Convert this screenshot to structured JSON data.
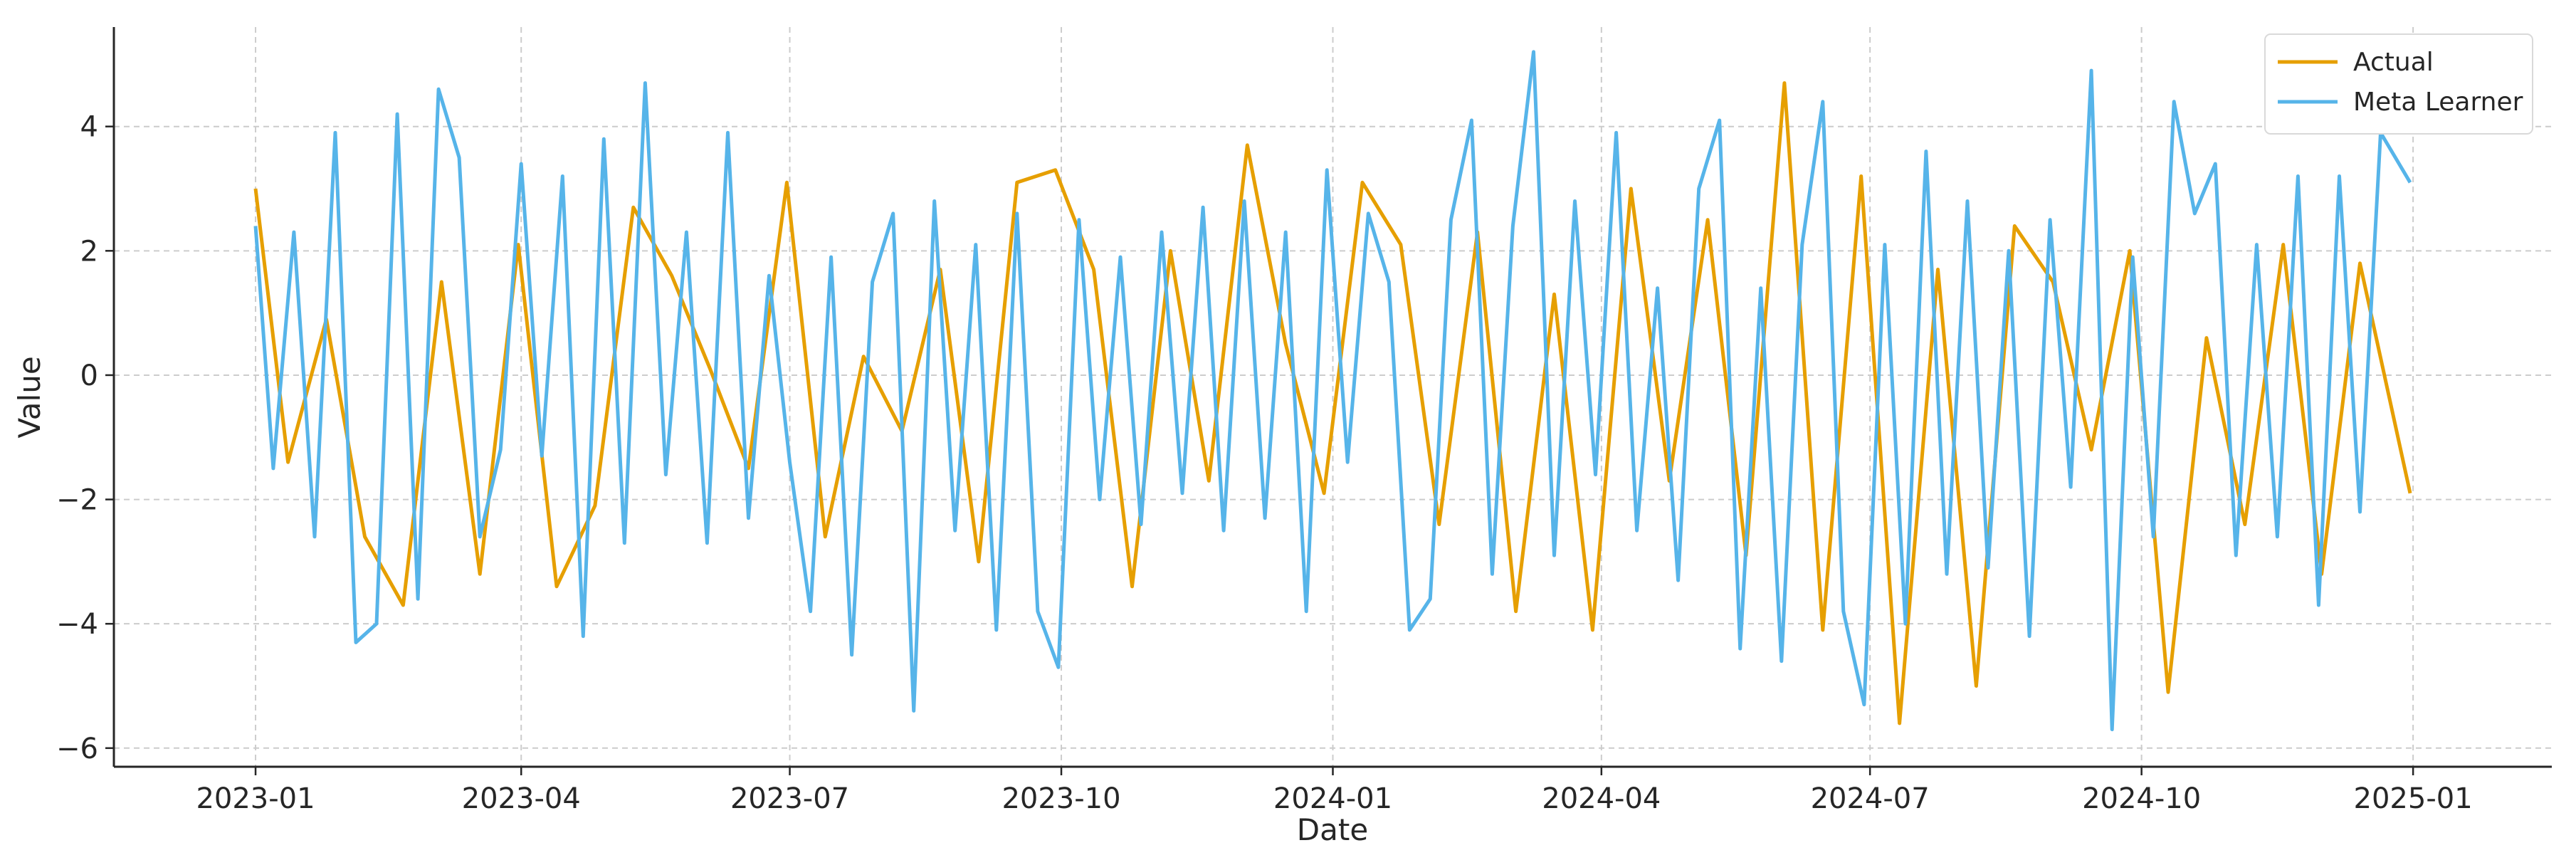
{
  "chart_data": {
    "type": "line",
    "title": "",
    "xlabel": "Date",
    "ylabel": "Value",
    "x_range": [
      "2023-01-01",
      "2024-12-31"
    ],
    "xlim": [
      "2022-11-14",
      "2025-02-17"
    ],
    "ylim": [
      -6.3,
      5.6
    ],
    "grid": true,
    "legend_position": "top-right",
    "x_ticks": [
      "2023-01",
      "2023-04",
      "2023-07",
      "2023-10",
      "2024-01",
      "2024-04",
      "2024-07",
      "2024-10",
      "2025-01"
    ],
    "x_tick_dates": [
      "2023-01-01",
      "2023-04-01",
      "2023-07-01",
      "2023-10-01",
      "2024-01-01",
      "2024-04-01",
      "2024-07-01",
      "2024-10-01",
      "2025-01-01"
    ],
    "y_ticks": [
      -6,
      -4,
      -2,
      0,
      2,
      4
    ],
    "y_tick_labels": [
      "−6",
      "−4",
      "−2",
      "0",
      "2",
      "4"
    ],
    "series": [
      {
        "name": "Actual",
        "color": "#E69F00",
        "x": [
          "2023-01-01",
          "2023-01-12",
          "2023-01-25",
          "2023-02-07",
          "2023-02-20",
          "2023-03-05",
          "2023-03-18",
          "2023-03-31",
          "2023-04-13",
          "2023-04-26",
          "2023-05-09",
          "2023-05-22",
          "2023-06-04",
          "2023-06-17",
          "2023-06-30",
          "2023-07-13",
          "2023-07-26",
          "2023-08-08",
          "2023-08-21",
          "2023-09-03",
          "2023-09-16",
          "2023-09-29",
          "2023-10-12",
          "2023-10-25",
          "2023-11-07",
          "2023-11-20",
          "2023-12-03",
          "2023-12-16",
          "2023-12-29",
          "2024-01-11",
          "2024-01-24",
          "2024-02-06",
          "2024-02-19",
          "2024-03-03",
          "2024-03-16",
          "2024-03-29",
          "2024-04-11",
          "2024-04-24",
          "2024-05-07",
          "2024-05-20",
          "2024-06-02",
          "2024-06-15",
          "2024-06-28",
          "2024-07-11",
          "2024-07-24",
          "2024-08-06",
          "2024-08-19",
          "2024-09-01",
          "2024-09-14",
          "2024-09-27",
          "2024-10-10",
          "2024-10-23",
          "2024-11-05",
          "2024-11-18",
          "2024-12-01",
          "2024-12-14",
          "2024-12-31"
        ],
        "y": [
          3.0,
          -1.4,
          0.9,
          -2.6,
          -3.7,
          1.5,
          -3.2,
          2.1,
          -3.4,
          -2.1,
          2.7,
          1.6,
          0.1,
          -1.5,
          3.1,
          -2.6,
          0.3,
          -0.9,
          1.7,
          -3.0,
          3.1,
          3.3,
          1.7,
          -3.4,
          2.0,
          -1.7,
          3.7,
          0.5,
          -1.9,
          3.1,
          2.1,
          -2.4,
          2.3,
          -3.8,
          1.3,
          -4.1,
          3.0,
          -1.7,
          2.5,
          -2.9,
          4.7,
          -4.1,
          3.2,
          -5.6,
          1.7,
          -5.0,
          2.4,
          1.5,
          -1.2,
          2.0,
          -5.1,
          0.6,
          -2.4,
          2.1,
          -3.2,
          1.8,
          -1.9
        ]
      },
      {
        "name": "Meta Learner",
        "color": "#56B4E9",
        "x": [
          "2023-01-01",
          "2023-01-07",
          "2023-01-14",
          "2023-01-21",
          "2023-01-28",
          "2023-02-04",
          "2023-02-11",
          "2023-02-18",
          "2023-02-25",
          "2023-03-04",
          "2023-03-11",
          "2023-03-18",
          "2023-03-25",
          "2023-04-01",
          "2023-04-08",
          "2023-04-15",
          "2023-04-22",
          "2023-04-29",
          "2023-05-06",
          "2023-05-13",
          "2023-05-20",
          "2023-05-27",
          "2023-06-03",
          "2023-06-10",
          "2023-06-17",
          "2023-06-24",
          "2023-07-01",
          "2023-07-08",
          "2023-07-15",
          "2023-07-22",
          "2023-07-29",
          "2023-08-05",
          "2023-08-12",
          "2023-08-19",
          "2023-08-26",
          "2023-09-02",
          "2023-09-09",
          "2023-09-16",
          "2023-09-23",
          "2023-09-30",
          "2023-10-07",
          "2023-10-14",
          "2023-10-21",
          "2023-10-28",
          "2023-11-04",
          "2023-11-11",
          "2023-11-18",
          "2023-11-25",
          "2023-12-02",
          "2023-12-09",
          "2023-12-16",
          "2023-12-23",
          "2023-12-30",
          "2024-01-06",
          "2024-01-13",
          "2024-01-20",
          "2024-01-27",
          "2024-02-03",
          "2024-02-10",
          "2024-02-17",
          "2024-02-24",
          "2024-03-02",
          "2024-03-09",
          "2024-03-16",
          "2024-03-23",
          "2024-03-30",
          "2024-04-06",
          "2024-04-13",
          "2024-04-20",
          "2024-04-27",
          "2024-05-04",
          "2024-05-11",
          "2024-05-18",
          "2024-05-25",
          "2024-06-01",
          "2024-06-08",
          "2024-06-15",
          "2024-06-22",
          "2024-06-29",
          "2024-07-06",
          "2024-07-13",
          "2024-07-20",
          "2024-07-27",
          "2024-08-03",
          "2024-08-10",
          "2024-08-17",
          "2024-08-24",
          "2024-08-31",
          "2024-09-07",
          "2024-09-14",
          "2024-09-21",
          "2024-09-28",
          "2024-10-05",
          "2024-10-12",
          "2024-10-19",
          "2024-10-26",
          "2024-11-02",
          "2024-11-09",
          "2024-11-16",
          "2024-11-23",
          "2024-11-30",
          "2024-12-07",
          "2024-12-14",
          "2024-12-21",
          "2024-12-31"
        ],
        "y": [
          2.4,
          -1.5,
          2.3,
          -2.6,
          3.9,
          -4.3,
          -4.0,
          4.2,
          -3.6,
          4.6,
          3.5,
          -2.6,
          -1.2,
          3.4,
          -1.3,
          3.2,
          -4.2,
          3.8,
          -2.7,
          4.7,
          -1.6,
          2.3,
          -2.7,
          3.9,
          -2.3,
          1.6,
          -1.4,
          -3.8,
          1.9,
          -4.5,
          1.5,
          2.6,
          -5.4,
          2.8,
          -2.5,
          2.1,
          -4.1,
          2.6,
          -3.8,
          -4.7,
          2.5,
          -2.0,
          1.9,
          -2.4,
          2.3,
          -1.9,
          2.7,
          -2.5,
          2.8,
          -2.3,
          2.3,
          -3.8,
          3.3,
          -1.4,
          2.6,
          1.5,
          -4.1,
          -3.6,
          2.5,
          4.1,
          -3.2,
          2.4,
          5.2,
          -2.9,
          2.8,
          -1.6,
          3.9,
          -2.5,
          1.4,
          -3.3,
          3.0,
          4.1,
          -4.4,
          1.4,
          -4.6,
          2.1,
          4.4,
          -3.8,
          -5.3,
          2.1,
          -4.0,
          3.6,
          -3.2,
          2.8,
          -3.1,
          2.0,
          -4.2,
          2.5,
          -1.8,
          4.9,
          -5.7,
          1.9,
          -2.6,
          4.4,
          2.6,
          3.4,
          -2.9,
          2.1,
          -2.6,
          3.2,
          -3.7,
          3.2,
          -2.2,
          3.9,
          3.1
        ]
      }
    ]
  }
}
